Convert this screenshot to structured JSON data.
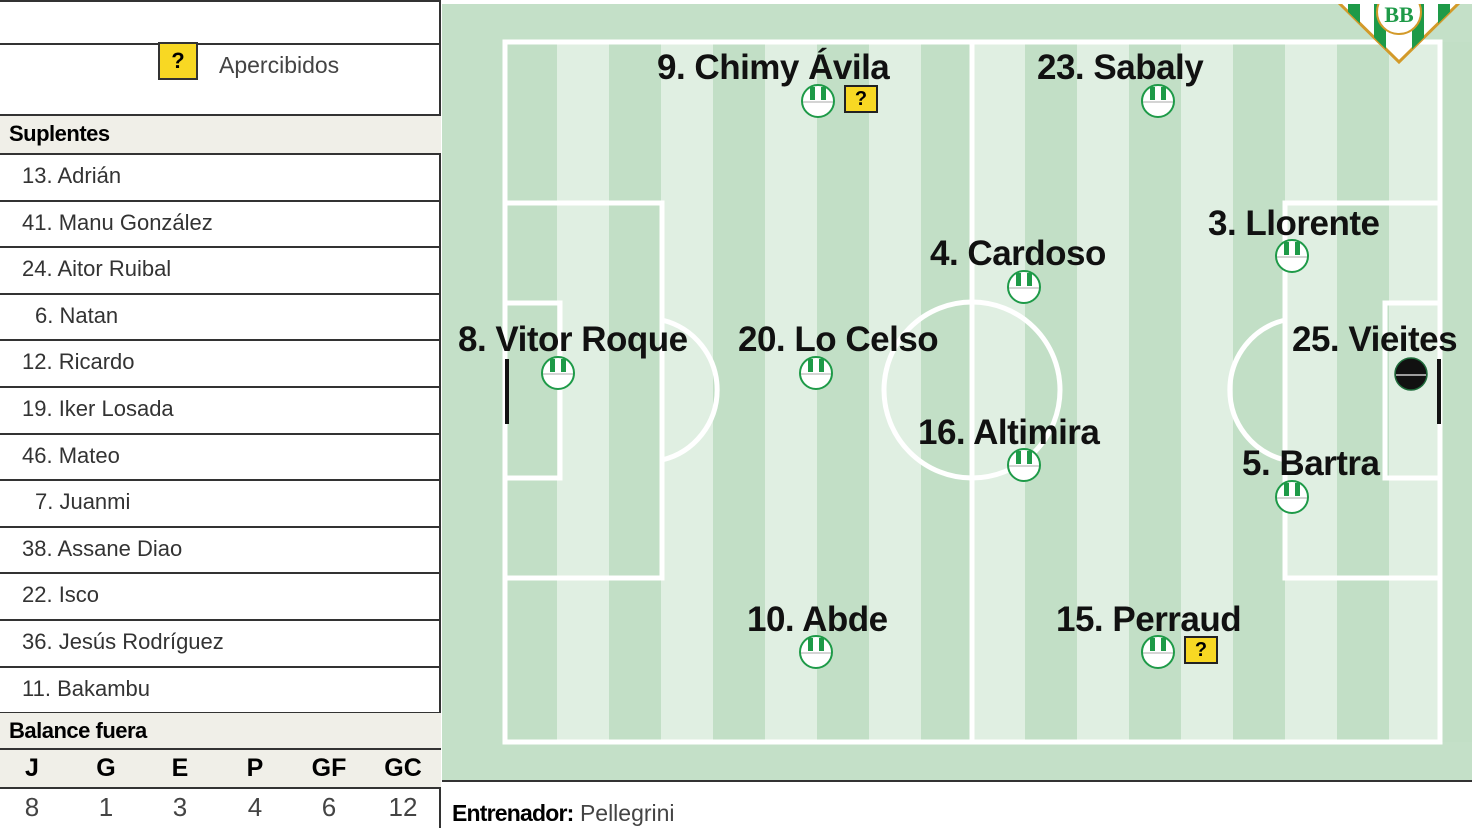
{
  "legend": {
    "warning_symbol": "?",
    "warning_label": "Apercibidos"
  },
  "substitutes": {
    "title": "Suplentes",
    "items": [
      "13. Adrián",
      "41. Manu González",
      "24. Aitor Ruibal",
      "6. Natan",
      "12. Ricardo",
      "19. Iker Losada",
      "46. Mateo",
      "7. Juanmi",
      "38. Assane Diao",
      "22. Isco",
      "36. Jesús Rodríguez",
      "11. Bakambu"
    ]
  },
  "balance": {
    "title": "Balance fuera",
    "headers": [
      "J",
      "G",
      "E",
      "P",
      "GF",
      "GC"
    ],
    "values": [
      "8",
      "1",
      "3",
      "4",
      "6",
      "12"
    ]
  },
  "players": [
    "9. Chimy Ávila",
    "23. Sabaly",
    "4. Cardoso",
    "3. Llorente",
    "8. Vitor Roque",
    "20. Lo Celso",
    "25. Vieites",
    "16. Altimira",
    "5. Bartra",
    "10. Abde",
    "15. Perraud"
  ],
  "coach": {
    "label": "Entrenador:",
    "name": "Pellegrini"
  },
  "colors": {
    "team_green": "#1e9a48",
    "warning_yellow": "#f8d823",
    "pitch_dark": "#c2dfc6",
    "pitch_light": "#e0efe2"
  },
  "crest": "real-betis-crest"
}
